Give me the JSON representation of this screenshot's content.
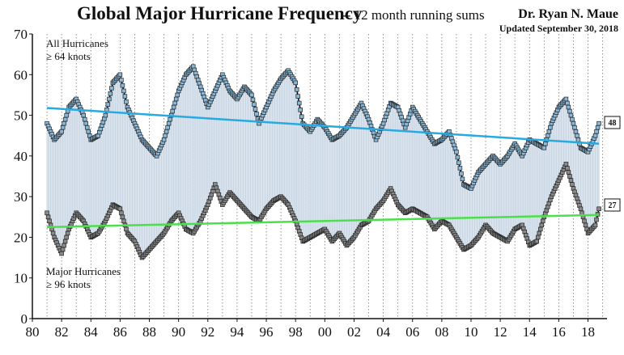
{
  "title": "Global Major Hurricane Frequency",
  "subtitle": "-- 12 month running sums",
  "author": "Dr. Ryan N. Maue",
  "updated": "Updated September 30, 2018",
  "notes": {
    "all_line1": "All Hurricanes",
    "all_line2": "≥ 64 knots",
    "major_line1": "Major Hurricanes",
    "major_line2": "≥ 96 knots"
  },
  "end_labels": {
    "all": "48",
    "major": "27"
  },
  "colors": {
    "all_trend": "#27a9e1",
    "major_trend": "#4be04b",
    "all_marker": "#8ab8d8",
    "major_marker": "#8a8a8a",
    "fill": "#c8d6e4"
  },
  "chart_data": {
    "type": "line",
    "title": "Global Major Hurricane Frequency",
    "xlim": [
      80,
      119.3
    ],
    "ylim": [
      0,
      70
    ],
    "x_ticks": [
      "80",
      "82",
      "84",
      "86",
      "88",
      "90",
      "92",
      "94",
      "96",
      "98",
      "00",
      "02",
      "04",
      "06",
      "08",
      "10",
      "12",
      "14",
      "16",
      "18"
    ],
    "y_ticks": [
      0,
      10,
      20,
      30,
      40,
      50,
      60,
      70
    ],
    "grid": "vertical dotted at each year",
    "series": [
      {
        "name": "All Hurricanes ≥ 64 knots",
        "x": [
          81,
          81.5,
          82,
          82.5,
          83,
          83.5,
          84,
          84.5,
          85,
          85.5,
          86,
          86.5,
          87,
          87.5,
          88,
          88.5,
          89,
          89.5,
          90,
          90.5,
          91,
          91.5,
          92,
          92.5,
          93,
          93.5,
          94,
          94.5,
          95,
          95.5,
          96,
          96.5,
          97,
          97.5,
          98,
          98.5,
          99,
          99.5,
          100,
          100.5,
          101,
          101.5,
          102,
          102.5,
          103,
          103.5,
          104,
          104.5,
          105,
          105.5,
          106,
          106.5,
          107,
          107.5,
          108,
          108.5,
          109,
          109.5,
          110,
          110.5,
          111,
          111.5,
          112,
          112.5,
          113,
          113.5,
          114,
          114.5,
          115,
          115.5,
          116,
          116.5,
          117,
          117.5,
          118,
          118.5,
          118.75
        ],
        "values": [
          48,
          44,
          46,
          52,
          54,
          50,
          44,
          45,
          50,
          58,
          60,
          52,
          48,
          44,
          42,
          40,
          44,
          50,
          56,
          60,
          62,
          57,
          52,
          56,
          60,
          56,
          54,
          57,
          55,
          48,
          52,
          56,
          59,
          61,
          58,
          48,
          46,
          49,
          47,
          44,
          45,
          47,
          50,
          53,
          49,
          44,
          48,
          53,
          52,
          47,
          52,
          49,
          46,
          43,
          44,
          46,
          41,
          33,
          32,
          36,
          38,
          40,
          38,
          40,
          43,
          40,
          44,
          43,
          42,
          48,
          52,
          54,
          48,
          42,
          41,
          45,
          48
        ]
      },
      {
        "name": "Major Hurricanes ≥ 96 knots",
        "x": [
          81,
          81.5,
          82,
          82.5,
          83,
          83.5,
          84,
          84.5,
          85,
          85.5,
          86,
          86.5,
          87,
          87.5,
          88,
          88.5,
          89,
          89.5,
          90,
          90.5,
          91,
          91.5,
          92,
          92.5,
          93,
          93.5,
          94,
          94.5,
          95,
          95.5,
          96,
          96.5,
          97,
          97.5,
          98,
          98.5,
          99,
          99.5,
          100,
          100.5,
          101,
          101.5,
          102,
          102.5,
          103,
          103.5,
          104,
          104.5,
          105,
          105.5,
          106,
          106.5,
          107,
          107.5,
          108,
          108.5,
          109,
          109.5,
          110,
          110.5,
          111,
          111.5,
          112,
          112.5,
          113,
          113.5,
          114,
          114.5,
          115,
          115.5,
          116,
          116.5,
          117,
          117.5,
          118,
          118.5,
          118.75
        ],
        "values": [
          26,
          20,
          16,
          22,
          26,
          24,
          20,
          21,
          24,
          28,
          27,
          21,
          19,
          15,
          17,
          19,
          21,
          24,
          26,
          22,
          21,
          24,
          28,
          33,
          28,
          31,
          29,
          27,
          25,
          24,
          27,
          29,
          30,
          28,
          24,
          19,
          20,
          21,
          22,
          19,
          21,
          18,
          20,
          23,
          24,
          27,
          29,
          32,
          28,
          26,
          27,
          26,
          25,
          22,
          24,
          23,
          20,
          17,
          18,
          20,
          23,
          21,
          20,
          19,
          22,
          23,
          18,
          19,
          25,
          30,
          34,
          38,
          32,
          27,
          21,
          23,
          27
        ]
      },
      {
        "name": "All Hurricanes trend",
        "x": [
          81,
          118.75
        ],
        "values": [
          51.8,
          43
        ]
      },
      {
        "name": "Major Hurricanes trend",
        "x": [
          81,
          118.75
        ],
        "values": [
          22.5,
          25.5
        ]
      }
    ]
  }
}
